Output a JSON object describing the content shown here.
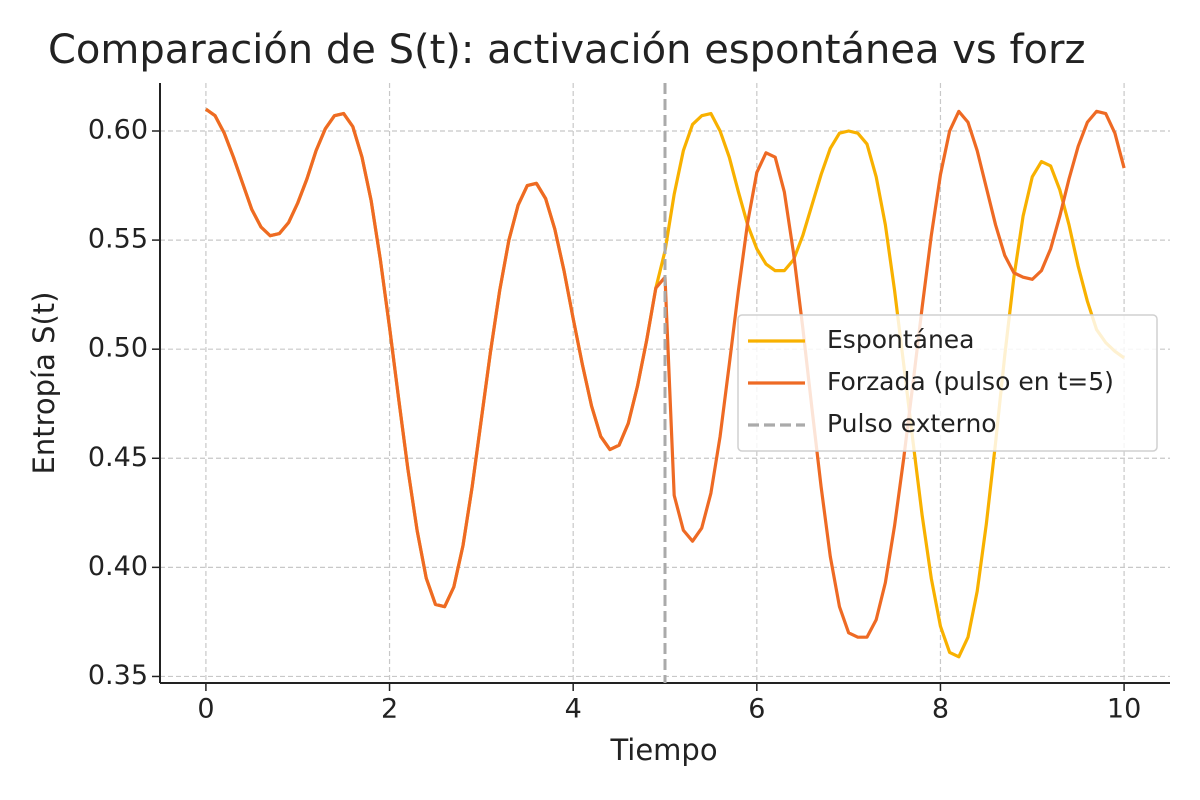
{
  "chart_data": {
    "type": "line",
    "title": "Comparación de S(t): activación espontánea vs forz",
    "xlabel": "Tiempo",
    "ylabel": "Entropía S(t)",
    "x": [
      0,
      0.1,
      0.2,
      0.3,
      0.4,
      0.5,
      0.6,
      0.7,
      0.8,
      0.9,
      1,
      1.1,
      1.2,
      1.3,
      1.4,
      1.5,
      1.6,
      1.7,
      1.8,
      1.9,
      2,
      2.1,
      2.2,
      2.3,
      2.4,
      2.5,
      2.6,
      2.7,
      2.8,
      2.9,
      3,
      3.1,
      3.2,
      3.3,
      3.4,
      3.5,
      3.6,
      3.7,
      3.8,
      3.9,
      4,
      4.1,
      4.2,
      4.3,
      4.4,
      4.5,
      4.6,
      4.7,
      4.8,
      4.9,
      5,
      5.1,
      5.2,
      5.3,
      5.4,
      5.5,
      5.6,
      5.7,
      5.8,
      5.9,
      6,
      6.1,
      6.2,
      6.3,
      6.4,
      6.5,
      6.6,
      6.7,
      6.8,
      6.9,
      7,
      7.1,
      7.2,
      7.3,
      7.4,
      7.5,
      7.6,
      7.7,
      7.8,
      7.9,
      8,
      8.1,
      8.2,
      8.3,
      8.4,
      8.5,
      8.6,
      8.7,
      8.8,
      8.9,
      9,
      9.1,
      9.2,
      9.3,
      9.4,
      9.5,
      9.6,
      9.7,
      9.8,
      9.9,
      10
    ],
    "series": [
      {
        "name": "Espontánea",
        "color": "#f8b100",
        "values": [
          0.61,
          0.607,
          0.599,
          0.588,
          0.576,
          0.564,
          0.556,
          0.552,
          0.553,
          0.558,
          0.567,
          0.578,
          0.591,
          0.601,
          0.607,
          0.608,
          0.602,
          0.588,
          0.568,
          0.541,
          0.51,
          0.477,
          0.445,
          0.417,
          0.395,
          0.383,
          0.382,
          0.391,
          0.41,
          0.437,
          0.468,
          0.499,
          0.527,
          0.55,
          0.566,
          0.575,
          0.576,
          0.569,
          0.555,
          0.536,
          0.514,
          0.493,
          0.474,
          0.46,
          0.454,
          0.456,
          0.466,
          0.483,
          0.504,
          0.528,
          0.545,
          0.571,
          0.591,
          0.603,
          0.607,
          0.608,
          0.6,
          0.588,
          0.572,
          0.557,
          0.546,
          0.539,
          0.536,
          0.536,
          0.541,
          0.552,
          0.566,
          0.58,
          0.592,
          0.599,
          0.6,
          0.599,
          0.594,
          0.579,
          0.557,
          0.527,
          0.493,
          0.458,
          0.424,
          0.395,
          0.373,
          0.361,
          0.359,
          0.368,
          0.389,
          0.42,
          0.457,
          0.497,
          0.533,
          0.561,
          0.579,
          0.586,
          0.584,
          0.573,
          0.557,
          0.538,
          0.522,
          0.509,
          0.503,
          0.499,
          0.496
        ]
      },
      {
        "name": "Forzada (pulso en t=5)",
        "color": "#ee6a24",
        "values": [
          0.61,
          0.607,
          0.599,
          0.588,
          0.576,
          0.564,
          0.556,
          0.552,
          0.553,
          0.558,
          0.567,
          0.578,
          0.591,
          0.601,
          0.607,
          0.608,
          0.602,
          0.588,
          0.568,
          0.541,
          0.51,
          0.477,
          0.445,
          0.417,
          0.395,
          0.383,
          0.382,
          0.391,
          0.41,
          0.437,
          0.468,
          0.499,
          0.527,
          0.55,
          0.566,
          0.575,
          0.576,
          0.569,
          0.555,
          0.536,
          0.514,
          0.493,
          0.474,
          0.46,
          0.454,
          0.456,
          0.466,
          0.483,
          0.504,
          0.528,
          0.533,
          0.433,
          0.417,
          0.412,
          0.418,
          0.434,
          0.46,
          0.493,
          0.527,
          0.558,
          0.581,
          0.59,
          0.588,
          0.572,
          0.544,
          0.51,
          0.473,
          0.437,
          0.405,
          0.382,
          0.37,
          0.368,
          0.368,
          0.376,
          0.393,
          0.419,
          0.45,
          0.484,
          0.519,
          0.552,
          0.58,
          0.6,
          0.609,
          0.604,
          0.591,
          0.574,
          0.557,
          0.543,
          0.535,
          0.533,
          0.532,
          0.536,
          0.546,
          0.561,
          0.578,
          0.593,
          0.604,
          0.609,
          0.608,
          0.599,
          0.583
        ]
      }
    ],
    "vlines": [
      {
        "name": "Pulso externo",
        "x": 5,
        "color": "#aaaaaa"
      }
    ],
    "xlim": [
      -0.5,
      10.5
    ],
    "xticks": [
      0,
      2,
      4,
      6,
      8,
      10
    ],
    "ylim": [
      0.347,
      0.622
    ],
    "yticks": [
      0.35,
      {
        "value": 0.4,
        "label": "0.40"
      },
      0.45,
      {
        "value": 0.5,
        "label": "0.50"
      },
      0.55,
      {
        "value": 0.6,
        "label": "0.60"
      }
    ],
    "grid": true,
    "legend": "center right"
  }
}
